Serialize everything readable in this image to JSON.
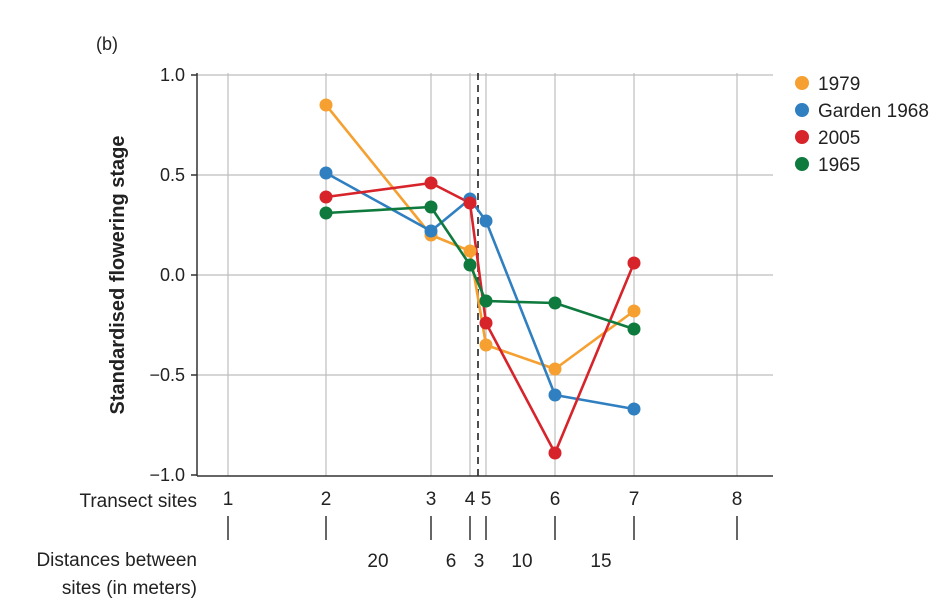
{
  "chart_data": {
    "type": "line",
    "panel_label": "(b)",
    "ylabel": "Standardised flowering stage",
    "ylim": [
      -1.0,
      1.0
    ],
    "y_ticks": [
      "1.0",
      "0.5",
      "0.0",
      "−0.5",
      "−1.0"
    ],
    "y_tick_values": [
      1.0,
      0.5,
      0.0,
      -0.5,
      -1.0
    ],
    "grid": true,
    "legend_position": "right",
    "x_row_label": "Transect sites",
    "x_sites": [
      "1",
      "2",
      "3",
      "4",
      "5",
      "6",
      "7",
      "8"
    ],
    "distance_row_label": [
      "Distances between",
      "sites (in meters)"
    ],
    "distances": [
      "20",
      "6",
      "3",
      "10",
      "15"
    ],
    "series": [
      {
        "name": "1979",
        "color": "#f5a030",
        "x": [
          2,
          3,
          4,
          5,
          6,
          7
        ],
        "values": [
          0.85,
          0.2,
          0.12,
          -0.35,
          -0.47,
          -0.18
        ]
      },
      {
        "name": "Garden 1968",
        "color": "#2f7fc1",
        "x": [
          2,
          3,
          4,
          5,
          6,
          7
        ],
        "values": [
          0.51,
          0.22,
          0.38,
          0.27,
          -0.6,
          -0.67
        ]
      },
      {
        "name": "2005",
        "color": "#d7242b",
        "x": [
          2,
          3,
          4,
          5,
          6,
          7
        ],
        "values": [
          0.39,
          0.46,
          0.36,
          -0.24,
          -0.89,
          0.06
        ]
      },
      {
        "name": "1965",
        "color": "#0f7a3d",
        "x": [
          2,
          3,
          4,
          5,
          6,
          7
        ],
        "values": [
          0.31,
          0.34,
          0.05,
          -0.13,
          -0.14,
          -0.27
        ]
      }
    ]
  }
}
